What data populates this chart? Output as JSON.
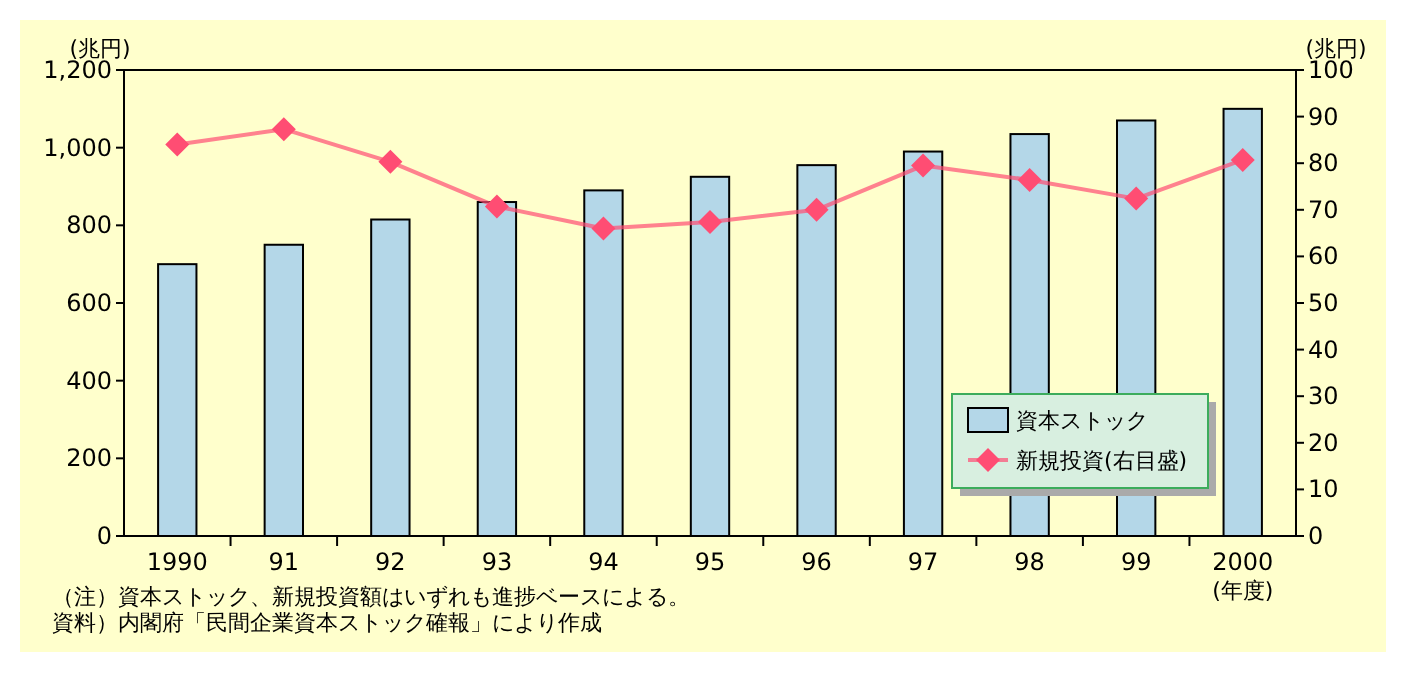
{
  "chart_data": {
    "type": "bar",
    "ylabel": "(兆円)",
    "y2label": "(兆円)",
    "xlabel": "(年度)",
    "categories": [
      "1990",
      "91",
      "92",
      "93",
      "94",
      "95",
      "96",
      "97",
      "98",
      "99",
      "2000"
    ],
    "series": [
      {
        "name": "資本ストック",
        "color": "#b4d7e8",
        "values": [
          700,
          750,
          815,
          860,
          890,
          925,
          955,
          990,
          1035,
          1070,
          1100
        ]
      },
      {
        "name": "新規投資(右目盛)",
        "type": "line",
        "axis": "y2",
        "color": "#ff4d73",
        "marker": "diamond",
        "values": [
          84,
          87.3,
          80.3,
          70.7,
          66,
          67.4,
          70,
          79.5,
          76.4,
          72.4,
          80.7
        ]
      }
    ],
    "ylim": [
      0,
      1200
    ],
    "yticks": [
      0,
      {
        "value": 200,
        "label": "200"
      },
      {
        "value": 400,
        "label": "400"
      },
      {
        "value": 600,
        "label": "600"
      },
      {
        "value": 800,
        "label": "800"
      },
      {
        "value": 1000,
        "label": "1,000"
      },
      {
        "value": 1200,
        "label": "1,200"
      }
    ],
    "y2lim": [
      0,
      100
    ],
    "y2ticks": [
      0,
      10,
      20,
      30,
      40,
      50,
      60,
      70,
      80,
      90,
      100
    ],
    "grid": false,
    "legend": "bottom right",
    "annotations": [
      "（注）資本ストック、新規投資額はいずれも進捗ベースによる。",
      "資料）内閣府「民間企業資本ストック確報」により作成"
    ]
  }
}
